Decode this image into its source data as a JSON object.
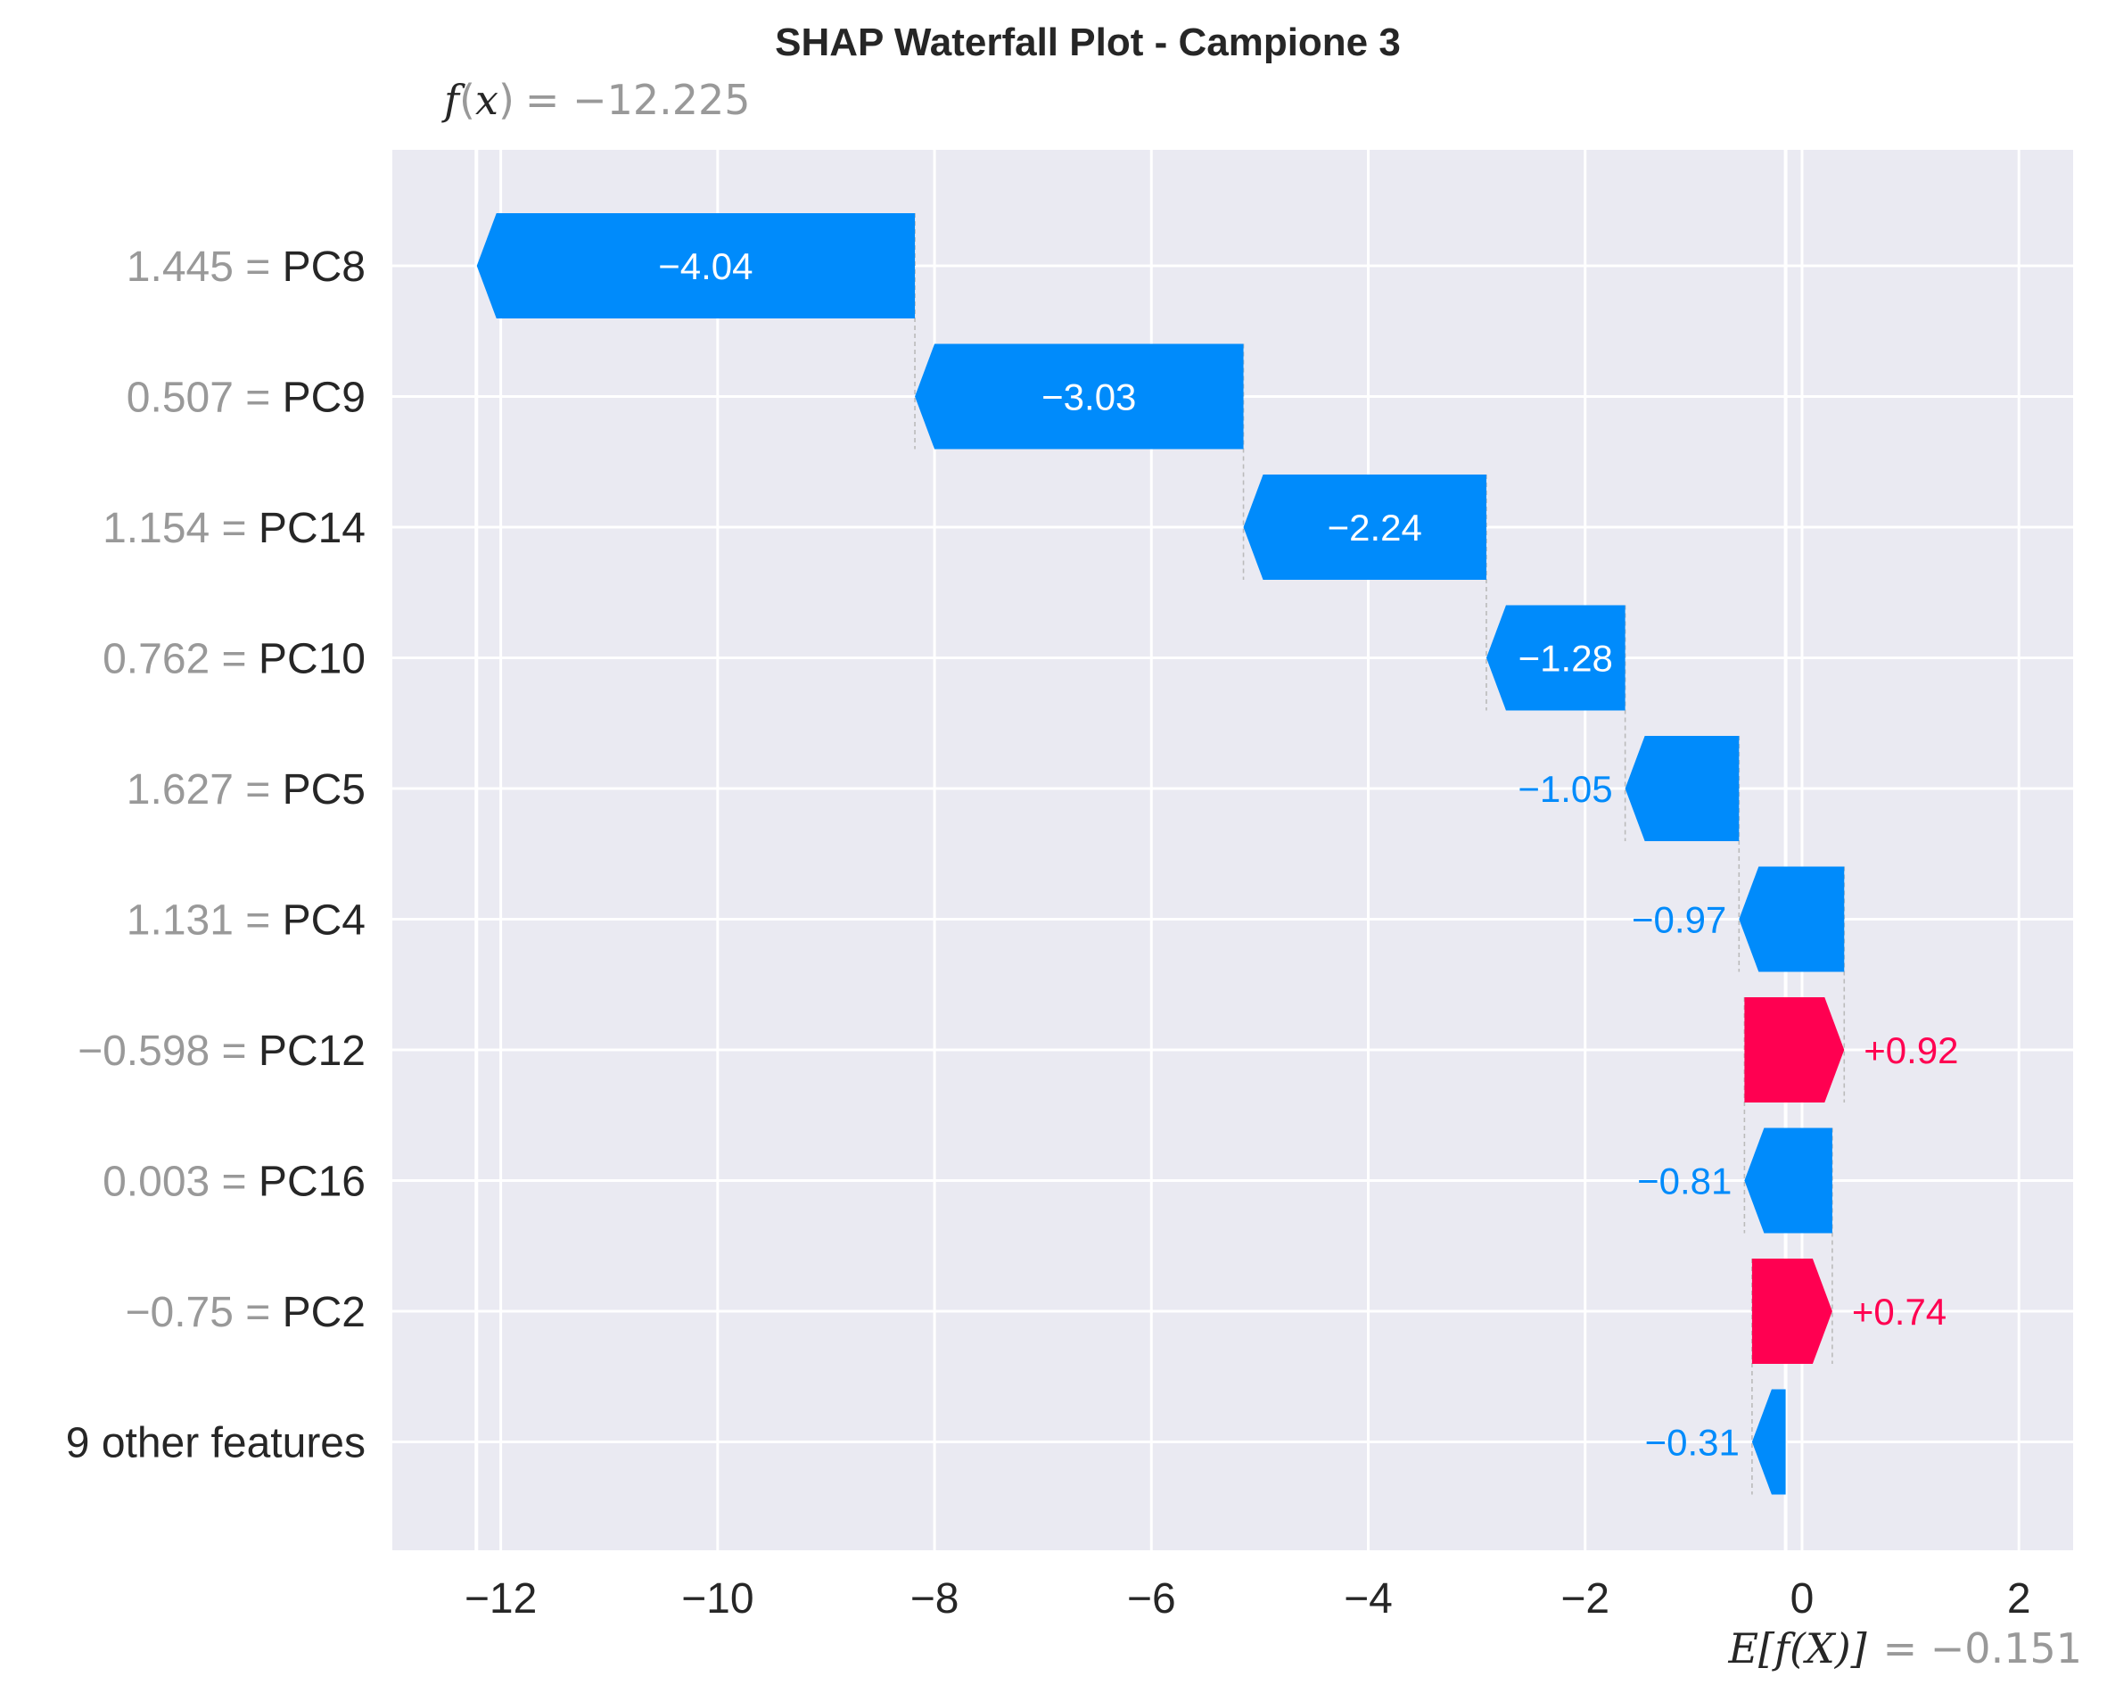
{
  "chart_data": {
    "type": "waterfall",
    "title": "SHAP Waterfall Plot - Campione 3",
    "fx": {
      "label_left": "f",
      "label_arg": "x",
      "value_text": "= −12.225",
      "value": -12.225
    },
    "base": {
      "label": "E[f(X)]",
      "value_text": "= −0.151",
      "value": -0.151
    },
    "xlim": [
      -13.0,
      2.5
    ],
    "xticks": [
      -12,
      -10,
      -8,
      -6,
      -4,
      -2,
      0,
      2
    ],
    "xtick_labels": [
      "−12",
      "−10",
      "−8",
      "−6",
      "−4",
      "−2",
      "0",
      "2"
    ],
    "grid": true,
    "features": [
      {
        "value_label": "1.445 = ",
        "name": "PC8",
        "shap": -4.04,
        "label": "−4.04",
        "label_inside": true
      },
      {
        "value_label": "0.507 = ",
        "name": "PC9",
        "shap": -3.03,
        "label": "−3.03",
        "label_inside": true
      },
      {
        "value_label": "1.154 = ",
        "name": "PC14",
        "shap": -2.24,
        "label": "−2.24",
        "label_inside": true
      },
      {
        "value_label": "0.762 = ",
        "name": "PC10",
        "shap": -1.28,
        "label": "−1.28",
        "label_inside": true
      },
      {
        "value_label": "1.627 = ",
        "name": "PC5",
        "shap": -1.05,
        "label": "−1.05",
        "label_inside": false
      },
      {
        "value_label": "1.131 = ",
        "name": "PC4",
        "shap": -0.97,
        "label": "−0.97",
        "label_inside": false
      },
      {
        "value_label": "−0.598 = ",
        "name": "PC12",
        "shap": 0.92,
        "label": "+0.92",
        "label_inside": false
      },
      {
        "value_label": "0.003 = ",
        "name": "PC16",
        "shap": -0.81,
        "label": "−0.81",
        "label_inside": false
      },
      {
        "value_label": "−0.75 = ",
        "name": "PC2",
        "shap": 0.74,
        "label": "+0.74",
        "label_inside": false
      },
      {
        "value_label": "",
        "name": "9 other features",
        "shap": -0.31,
        "label": "−0.31",
        "label_inside": false
      }
    ],
    "colors": {
      "negative": "#008bfb",
      "positive": "#ff0051",
      "background": "#eaeaf2",
      "grid": "#ffffff",
      "connector": "#bbbbbb"
    }
  }
}
